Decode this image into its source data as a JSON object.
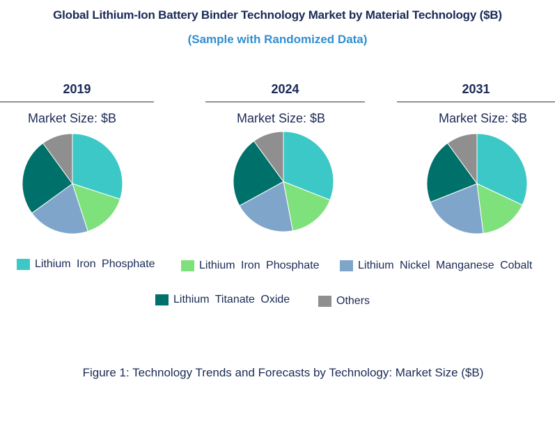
{
  "chart_data": {
    "type": "pie",
    "title": "Global Lithium-Ion Battery Binder Technology Market by Material Technology ($B)",
    "subtitle": "(Sample with Randomized Data)",
    "caption": "Figure 1: Technology Trends and Forecasts by Technology: Market Size ($B)",
    "legend": [
      {
        "name": "Lithium  Iron Phosphate",
        "color": "#3cc8c6"
      },
      {
        "name": "Lithium  Iron Phosphate",
        "color": "#7fe17c"
      },
      {
        "name": "Lithium  Nickel  Manganese  Cobalt",
        "color": "#7fa6ca"
      },
      {
        "name": "Lithium  Titanate  Oxide",
        "color": "#00706a"
      },
      {
        "name": "Others",
        "color": "#8f8f8f"
      }
    ],
    "pies": [
      {
        "year": "2019",
        "label": "Market Size: $B",
        "values": [
          30,
          15,
          20,
          25,
          10
        ]
      },
      {
        "year": "2024",
        "label": "Market Size: $B",
        "values": [
          31,
          16,
          20,
          23,
          10
        ]
      },
      {
        "year": "2031",
        "label": "Market Size: $B",
        "values": [
          32,
          16,
          21,
          21,
          10
        ]
      }
    ]
  }
}
